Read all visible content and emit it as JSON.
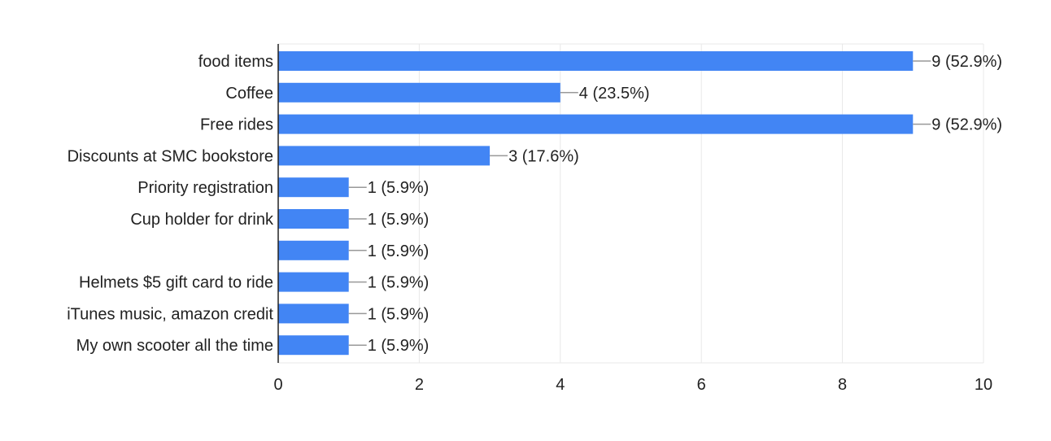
{
  "chart_data": {
    "type": "bar",
    "orientation": "horizontal",
    "categories": [
      "food items",
      "Coffee",
      "Free rides",
      "Discounts at SMC bookstore",
      "Priority registration",
      "Cup holder for drink",
      "",
      "Helmets $5 gift card to ride",
      "iTunes music, amazon credit",
      "My own scooter all the time"
    ],
    "values": [
      9,
      4,
      9,
      3,
      1,
      1,
      1,
      1,
      1,
      1
    ],
    "data_labels": [
      "9 (52.9%)",
      "4 (23.5%)",
      "9 (52.9%)",
      "3 (17.6%)",
      "1 (5.9%)",
      "1 (5.9%)",
      "1 (5.9%)",
      "1 (5.9%)",
      "1 (5.9%)",
      "1 (5.9%)"
    ],
    "xlim": [
      0,
      10
    ],
    "x_ticks": [
      "0",
      "2",
      "4",
      "6",
      "8",
      "10"
    ],
    "grid": true,
    "legend": "none",
    "bar_color": "#4285f4",
    "grid_color": "#e8e8e8",
    "axis_color": "#222222"
  }
}
